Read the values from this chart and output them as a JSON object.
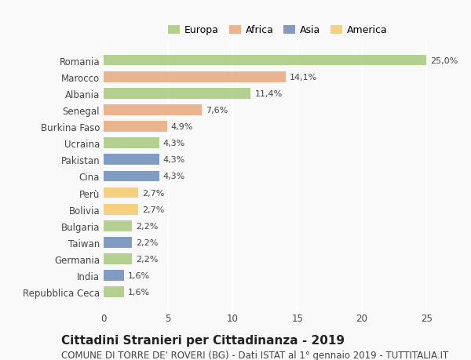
{
  "categories": [
    "Romania",
    "Marocco",
    "Albania",
    "Senegal",
    "Burkina Faso",
    "Ucraina",
    "Pakistan",
    "Cina",
    "Perù",
    "Bolivia",
    "Bulgaria",
    "Taiwan",
    "Germania",
    "India",
    "Repubblica Ceca"
  ],
  "values": [
    25.0,
    14.1,
    11.4,
    7.6,
    4.9,
    4.3,
    4.3,
    4.3,
    2.7,
    2.7,
    2.2,
    2.2,
    2.2,
    1.6,
    1.6
  ],
  "labels": [
    "25,0%",
    "14,1%",
    "11,4%",
    "7,6%",
    "4,9%",
    "4,3%",
    "4,3%",
    "4,3%",
    "2,7%",
    "2,7%",
    "2,2%",
    "2,2%",
    "2,2%",
    "1,6%",
    "1,6%"
  ],
  "continents": [
    "Europa",
    "Africa",
    "Europa",
    "Africa",
    "Africa",
    "Europa",
    "Asia",
    "Asia",
    "America",
    "America",
    "Europa",
    "Asia",
    "Europa",
    "Asia",
    "Europa"
  ],
  "colors": {
    "Europa": "#a8c97f",
    "Africa": "#e8a87c",
    "Asia": "#6b8cba",
    "America": "#f5c96a"
  },
  "legend_order": [
    "Europa",
    "Africa",
    "Asia",
    "America"
  ],
  "title": "Cittadini Stranieri per Cittadinanza - 2019",
  "subtitle": "COMUNE DI TORRE DE' ROVERI (BG) - Dati ISTAT al 1° gennaio 2019 - TUTTITALIA.IT",
  "xlim": [
    0,
    27
  ],
  "xticks": [
    0,
    5,
    10,
    15,
    20,
    25
  ],
  "background_color": "#f9f9f9",
  "bar_alpha": 0.85,
  "title_fontsize": 11,
  "subtitle_fontsize": 8.5,
  "label_fontsize": 8,
  "tick_fontsize": 8.5,
  "legend_fontsize": 9
}
